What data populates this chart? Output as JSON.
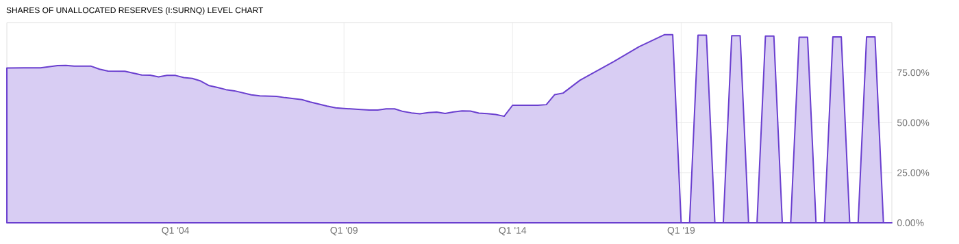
{
  "chart_data": {
    "type": "area",
    "title": "SHARES OF UNALLOCATED RESERVES (I:SURNQ) LEVEL CHART",
    "x": [
      "1999-01",
      "1999-07",
      "2000-01",
      "2000-07",
      "2000-10",
      "2001-01",
      "2001-07",
      "2001-10",
      "2002-01",
      "2002-07",
      "2003-01",
      "2003-04",
      "2003-07",
      "2003-10",
      "2004-01",
      "2004-04",
      "2004-07",
      "2004-10",
      "2005-01",
      "2005-04",
      "2005-07",
      "2005-10",
      "2006-04",
      "2006-07",
      "2007-01",
      "2007-04",
      "2007-10",
      "2008-01",
      "2008-07",
      "2008-10",
      "2009-01",
      "2009-07",
      "2009-10",
      "2010-01",
      "2010-04",
      "2010-07",
      "2010-10",
      "2011-01",
      "2011-04",
      "2011-07",
      "2011-10",
      "2012-01",
      "2012-04",
      "2012-07",
      "2012-10",
      "2013-01",
      "2013-04",
      "2013-07",
      "2013-10",
      "2014-01",
      "2014-10",
      "2015-01",
      "2015-04",
      "2015-07",
      "2016-01",
      "2017-01",
      "2017-10",
      "2018-07",
      "2018-10",
      "2019-01",
      "2019-04",
      "2019-07",
      "2019-10",
      "2020-01",
      "2020-04",
      "2020-07",
      "2020-10",
      "2021-01",
      "2021-04",
      "2021-07",
      "2021-10",
      "2022-01",
      "2022-04",
      "2022-07",
      "2022-10",
      "2023-01",
      "2023-04",
      "2023-07",
      "2023-10",
      "2024-01",
      "2024-04",
      "2024-07",
      "2024-10",
      "2025-01",
      "2025-04"
    ],
    "series": [
      {
        "color": "#6a3fcf",
        "values": [
          77.3,
          77.4,
          77.4,
          78.5,
          78.6,
          78.2,
          78.2,
          76.7,
          75.8,
          75.7,
          73.8,
          73.7,
          72.9,
          73.6,
          73.6,
          72.5,
          72.1,
          70.8,
          68.5,
          67.6,
          66.5,
          65.9,
          63.9,
          63.4,
          63.1,
          62.5,
          61.5,
          60.3,
          58.3,
          57.4,
          57.1,
          56.6,
          56.3,
          56.3,
          56.9,
          56.9,
          55.6,
          54.9,
          54.4,
          55.0,
          55.3,
          54.6,
          55.4,
          55.9,
          55.8,
          54.8,
          54.5,
          54.1,
          53.2,
          58.7,
          58.7,
          59.0,
          64.0,
          64.8,
          71.2,
          80.5,
          87.9,
          93.9,
          93.9,
          0,
          0,
          93.7,
          93.7,
          0,
          0,
          93.4,
          93.4,
          0,
          0,
          93.3,
          93.3,
          0,
          0,
          92.7,
          92.7,
          0,
          0,
          92.8,
          92.8,
          0,
          0,
          92.8,
          92.8,
          0,
          0
        ]
      }
    ],
    "xlim": [
      "1999-01",
      "2025-04"
    ],
    "xticks": [
      {
        "value": "2004-01",
        "label": "Q1 '04"
      },
      {
        "value": "2009-01",
        "label": "Q1 '09"
      },
      {
        "value": "2014-01",
        "label": "Q1 '14"
      },
      {
        "value": "2019-01",
        "label": "Q1 '19"
      }
    ],
    "ylim": [
      0,
      100
    ],
    "yticks": [
      {
        "value": 0,
        "label": "0.00%"
      },
      {
        "value": 25,
        "label": "25.00%"
      },
      {
        "value": 50,
        "label": "50.00%"
      },
      {
        "value": 75,
        "label": "75.00%"
      }
    ],
    "grid": true,
    "marker": "none",
    "line_style": "solid"
  }
}
